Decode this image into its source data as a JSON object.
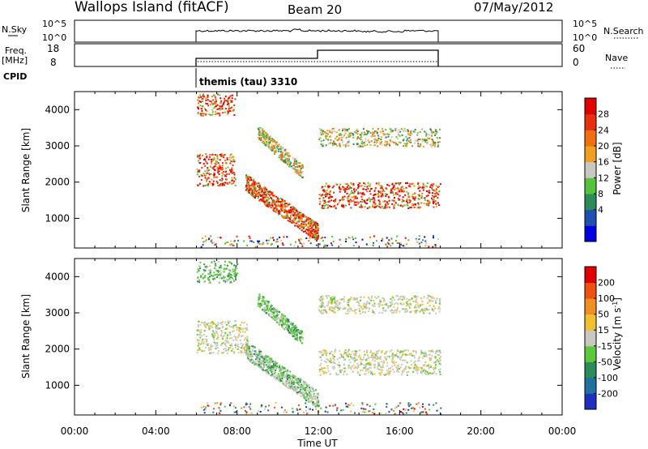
{
  "header": {
    "station": "Wallops Island (fitACF)",
    "beam": "Beam 20",
    "date": "07/May/2012"
  },
  "top_panels": {
    "nsky_label": "N.Sky",
    "nsky_ticks": [
      "10^5",
      "10^0"
    ],
    "nsearch_ticks": [
      "10^5",
      "10^0"
    ],
    "nsearch_label": "N.Search",
    "freq_label_1": "Freq.",
    "freq_label_2": "[MHz]",
    "freq_ticks": [
      "18",
      "8"
    ],
    "nave_ticks": [
      "60",
      "0"
    ],
    "nave_label": "Nave",
    "cpid_label": "CPID",
    "cpid_value": "themis (tau) 3310"
  },
  "chart_data": [
    {
      "type": "heatmap",
      "name": "power",
      "xlabel": "",
      "ylabel": "Slant Range [km]",
      "xlim_hours": [
        0,
        24
      ],
      "ylim_km": [
        180,
        4500
      ],
      "y_ticks": [
        "1000",
        "2000",
        "3000",
        "4000"
      ],
      "colorbar": {
        "label": "Power [dB]",
        "ticks": [
          "28",
          "24",
          "20",
          "16",
          "12",
          "8",
          "4"
        ],
        "colors": [
          "#0000e0",
          "#1f4fb0",
          "#2e8b57",
          "#56c23c",
          "#c8c8c0",
          "#f0a020",
          "#f07010",
          "#e83010",
          "#e00000"
        ]
      },
      "bands": [
        {
          "x": [
            6.0,
            7.9
          ],
          "y": [
            3850,
            4450
          ],
          "dominant": "orange-red"
        },
        {
          "x": [
            6.0,
            7.9
          ],
          "y": [
            1900,
            2800
          ],
          "dominant": "red-orange"
        },
        {
          "x": [
            8.4,
            12.0
          ],
          "y": [
            600,
            2000
          ],
          "dominant": "red-orange"
        },
        {
          "x": [
            9.0,
            11.2
          ],
          "y": [
            2300,
            3400
          ],
          "dominant": "green-orange"
        },
        {
          "x": [
            12.0,
            18.0
          ],
          "y": [
            1300,
            2000
          ],
          "dominant": "red-orange"
        },
        {
          "x": [
            12.0,
            18.0
          ],
          "y": [
            3000,
            3500
          ],
          "dominant": "orange-green"
        }
      ]
    },
    {
      "type": "heatmap",
      "name": "velocity",
      "xlabel": "Time UT",
      "ylabel": "Slant Range [km]",
      "xlim_hours": [
        0,
        24
      ],
      "ylim_km": [
        180,
        4500
      ],
      "x_ticks": [
        "00:00",
        "04:00",
        "08:00",
        "12:00",
        "16:00",
        "20:00",
        "00:00"
      ],
      "y_ticks": [
        "1000",
        "2000",
        "3000",
        "4000"
      ],
      "colorbar": {
        "label": "Velocity [m s^-1]",
        "label_main": "Velocity [m s",
        "label_sup": "-1",
        "label_end": "]",
        "ticks": [
          "200",
          "100",
          "50",
          "15",
          "-15",
          "-50",
          "-100",
          "-200"
        ],
        "colors": [
          "#1f30c0",
          "#2070a0",
          "#2e8b57",
          "#5ec83c",
          "#c8c8c0",
          "#f0c030",
          "#f09020",
          "#f05010",
          "#e00000"
        ]
      },
      "bands": [
        {
          "x": [
            6.0,
            8.0
          ],
          "y": [
            3850,
            4450
          ],
          "dominant": "green"
        },
        {
          "x": [
            6.0,
            8.5
          ],
          "y": [
            1900,
            2800
          ],
          "dominant": "grey"
        },
        {
          "x": [
            8.4,
            12.0
          ],
          "y": [
            600,
            2000
          ],
          "dominant": "green-grey"
        },
        {
          "x": [
            9.0,
            11.2
          ],
          "y": [
            2300,
            3400
          ],
          "dominant": "green"
        },
        {
          "x": [
            12.0,
            18.0
          ],
          "y": [
            1300,
            2000
          ],
          "dominant": "grey"
        },
        {
          "x": [
            12.0,
            18.0
          ],
          "y": [
            3000,
            3500
          ],
          "dominant": "grey"
        }
      ]
    }
  ]
}
